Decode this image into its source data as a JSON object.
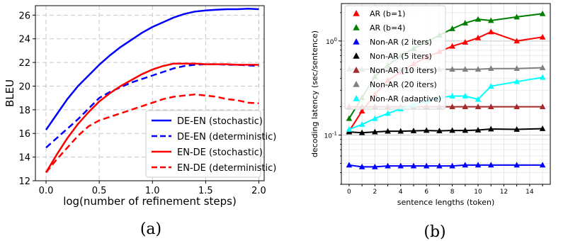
{
  "chart_data": [
    {
      "type": "line",
      "caption": "(a)",
      "xlabel": "log(number of refinement steps)",
      "ylabel": "BLEU",
      "xlim": [
        -0.1,
        2.05
      ],
      "ylim": [
        12,
        26.8
      ],
      "xticks": [
        0.0,
        0.5,
        1.0,
        1.5,
        2.0
      ],
      "xtick_labels": [
        "0.0",
        "0.5",
        "1.0",
        "1.5",
        "2.0"
      ],
      "yticks": [
        12,
        14,
        16,
        18,
        20,
        22,
        24,
        26
      ],
      "ytick_labels": [
        "12",
        "14",
        "16",
        "18",
        "20",
        "22",
        "24",
        "26"
      ],
      "grid": true,
      "legend_position": "bottom-right",
      "series": [
        {
          "name": "DE-EN (stochastic)",
          "color": "#0000ff",
          "style": "solid",
          "x": [
            0.0,
            0.1,
            0.2,
            0.3,
            0.4,
            0.5,
            0.6,
            0.7,
            0.8,
            0.9,
            1.0,
            1.1,
            1.2,
            1.3,
            1.4,
            1.5,
            1.6,
            1.7,
            1.8,
            1.9,
            2.0
          ],
          "y": [
            16.3,
            17.6,
            18.9,
            20.0,
            20.9,
            21.8,
            22.6,
            23.3,
            23.9,
            24.5,
            25.0,
            25.4,
            25.8,
            26.1,
            26.3,
            26.4,
            26.45,
            26.5,
            26.5,
            26.55,
            26.5
          ]
        },
        {
          "name": "DE-EN (deterministic)",
          "color": "#0000ff",
          "style": "dashed",
          "x": [
            0.0,
            0.1,
            0.2,
            0.3,
            0.4,
            0.5,
            0.6,
            0.7,
            0.8,
            0.9,
            1.0,
            1.1,
            1.2,
            1.3,
            1.4,
            1.5,
            1.6,
            1.7,
            1.8,
            1.9,
            2.0
          ],
          "y": [
            14.8,
            15.6,
            16.4,
            17.2,
            18.1,
            19.0,
            19.5,
            19.9,
            20.3,
            20.6,
            20.9,
            21.2,
            21.5,
            21.7,
            21.8,
            21.85,
            21.85,
            21.8,
            21.8,
            21.75,
            21.7
          ]
        },
        {
          "name": "EN-DE (stochastic)",
          "color": "#ff0000",
          "style": "solid",
          "x": [
            0.0,
            0.1,
            0.2,
            0.3,
            0.4,
            0.5,
            0.6,
            0.7,
            0.8,
            0.9,
            1.0,
            1.1,
            1.2,
            1.3,
            1.4,
            1.5,
            1.6,
            1.7,
            1.8,
            1.9,
            2.0
          ],
          "y": [
            12.7,
            14.2,
            15.6,
            16.8,
            17.8,
            18.7,
            19.4,
            20.0,
            20.5,
            21.0,
            21.4,
            21.7,
            21.9,
            21.9,
            21.9,
            21.85,
            21.85,
            21.85,
            21.8,
            21.8,
            21.8
          ]
        },
        {
          "name": "EN-DE (deterministic)",
          "color": "#ff0000",
          "style": "dashed",
          "x": [
            0.0,
            0.1,
            0.2,
            0.3,
            0.4,
            0.5,
            0.6,
            0.7,
            0.8,
            0.9,
            1.0,
            1.1,
            1.2,
            1.3,
            1.4,
            1.5,
            1.6,
            1.7,
            1.8,
            1.9,
            2.0
          ],
          "y": [
            12.7,
            13.8,
            14.8,
            15.8,
            16.6,
            17.1,
            17.4,
            17.7,
            18.0,
            18.3,
            18.6,
            18.9,
            19.1,
            19.2,
            19.3,
            19.2,
            19.1,
            18.9,
            18.8,
            18.6,
            18.55
          ]
        }
      ]
    },
    {
      "type": "line",
      "caption": "(b)",
      "xlabel": "sentence lengths (token)",
      "ylabel": "decoding latency (sec/sentence)",
      "xscale": "linear",
      "yscale": "log",
      "xlim": [
        -0.6,
        15.6
      ],
      "ylim": [
        0.03,
        2.5
      ],
      "xticks": [
        0,
        1,
        2,
        3,
        4,
        5,
        6,
        7,
        8,
        9,
        10,
        11,
        12,
        13,
        14,
        15
      ],
      "xtick_labels": [
        "0",
        "",
        "2",
        "",
        "4",
        "",
        "6",
        "",
        "8",
        "",
        "10",
        "",
        "12",
        "",
        "14",
        ""
      ],
      "yticks": [
        0.1,
        1.0
      ],
      "ytick_labels": [
        "10^-1",
        "10^0"
      ],
      "grid": true,
      "legend_position": "top-left",
      "marker": "triangle",
      "series": [
        {
          "name": "AR (b=1)",
          "color": "#ff0000",
          "x": [
            0,
            1,
            2,
            3,
            4,
            5,
            6,
            7,
            8,
            9,
            10,
            11,
            13,
            15
          ],
          "y": [
            0.11,
            0.18,
            0.27,
            0.38,
            0.47,
            0.57,
            0.67,
            0.77,
            0.88,
            0.97,
            1.08,
            1.25,
            1.0,
            1.1
          ]
        },
        {
          "name": "AR (b=4)",
          "color": "#008000",
          "x": [
            0,
            1,
            2,
            3,
            4,
            5,
            6,
            7,
            8,
            9,
            10,
            11,
            13,
            15
          ],
          "y": [
            0.15,
            0.25,
            0.42,
            0.55,
            0.7,
            0.83,
            0.98,
            1.15,
            1.35,
            1.55,
            1.7,
            1.65,
            1.8,
            1.95
          ]
        },
        {
          "name": "Non-AR (2 iters)",
          "color": "#0000ff",
          "x": [
            0,
            1,
            2,
            3,
            4,
            5,
            6,
            7,
            8,
            9,
            10,
            11,
            13,
            15
          ],
          "y": [
            0.048,
            0.046,
            0.046,
            0.047,
            0.047,
            0.047,
            0.047,
            0.047,
            0.047,
            0.048,
            0.048,
            0.048,
            0.048,
            0.048
          ]
        },
        {
          "name": "Non-AR (5 iters)",
          "color": "#000000",
          "x": [
            0,
            1,
            2,
            3,
            4,
            5,
            6,
            7,
            8,
            9,
            10,
            11,
            13,
            15
          ],
          "y": [
            0.108,
            0.106,
            0.108,
            0.11,
            0.11,
            0.111,
            0.112,
            0.111,
            0.112,
            0.112,
            0.113,
            0.116,
            0.115,
            0.117
          ]
        },
        {
          "name": "Non-AR (10 iters)",
          "color": "#a52a2a",
          "x": [
            0,
            1,
            2,
            3,
            4,
            5,
            6,
            7,
            8,
            9,
            10,
            11,
            13,
            15
          ],
          "y": [
            0.2,
            0.2,
            0.2,
            0.2,
            0.2,
            0.2,
            0.2,
            0.2,
            0.2,
            0.2,
            0.2,
            0.2,
            0.2,
            0.2
          ]
        },
        {
          "name": "Non-AR (20 iters)",
          "color": "#808080",
          "x": [
            0,
            1,
            2,
            3,
            4,
            5,
            6,
            7,
            8,
            9,
            10,
            11,
            13,
            15
          ],
          "y": [
            0.5,
            0.5,
            0.5,
            0.5,
            0.5,
            0.5,
            0.5,
            0.5,
            0.5,
            0.5,
            0.5,
            0.51,
            0.51,
            0.52
          ]
        },
        {
          "name": "Non-AR (adaptive)",
          "color": "#00ffff",
          "x": [
            0,
            1,
            2,
            3,
            4,
            5,
            6,
            7,
            8,
            9,
            10,
            11,
            13,
            15
          ],
          "y": [
            0.115,
            0.13,
            0.15,
            0.17,
            0.19,
            0.21,
            0.23,
            0.25,
            0.26,
            0.26,
            0.24,
            0.33,
            0.37,
            0.41
          ]
        }
      ]
    }
  ]
}
